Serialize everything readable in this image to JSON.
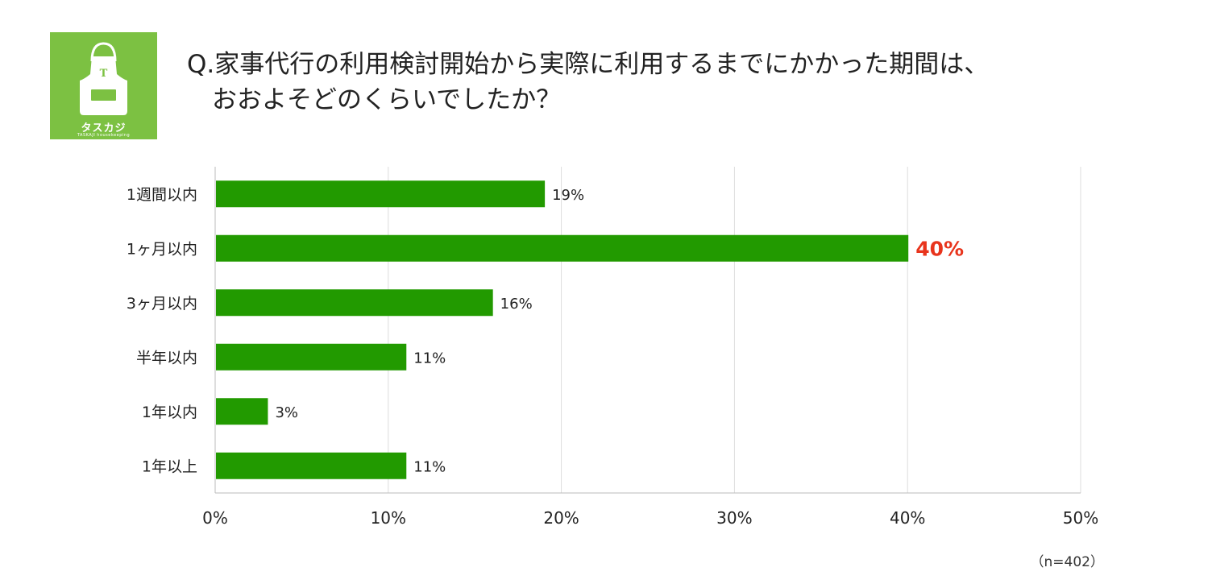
{
  "logo": {
    "icon": "apron-icon",
    "apron_letter": "T",
    "brand_text": "タスカジ",
    "brand_sub": "TASKAJI housekeeping",
    "color": "#7cc142"
  },
  "question": "Q.家事代行の利用検討開始から実際に利用するまでにかかった期間は、\n　おおよそどのくらいでしたか？",
  "chart_data": {
    "type": "bar",
    "orientation": "horizontal",
    "categories": [
      "1週間以内",
      "1ヶ月以内",
      "3ヶ月以内",
      "半年以内",
      "1年以内",
      "1年以上"
    ],
    "values": [
      19,
      40,
      16,
      11,
      3,
      11
    ],
    "value_labels": [
      "19%",
      "40%",
      "16%",
      "11%",
      "3%",
      "11%"
    ],
    "highlight_index": 1,
    "bar_color": "#229a00",
    "highlight_label_color": "#e8341c",
    "xlim": [
      0,
      50
    ],
    "xticks": [
      0,
      10,
      20,
      30,
      40,
      50
    ],
    "xtick_labels": [
      "0%",
      "10%",
      "20%",
      "30%",
      "40%",
      "50%"
    ],
    "grid": true,
    "title": "",
    "xlabel": "",
    "ylabel": ""
  },
  "note": "（n=402）"
}
